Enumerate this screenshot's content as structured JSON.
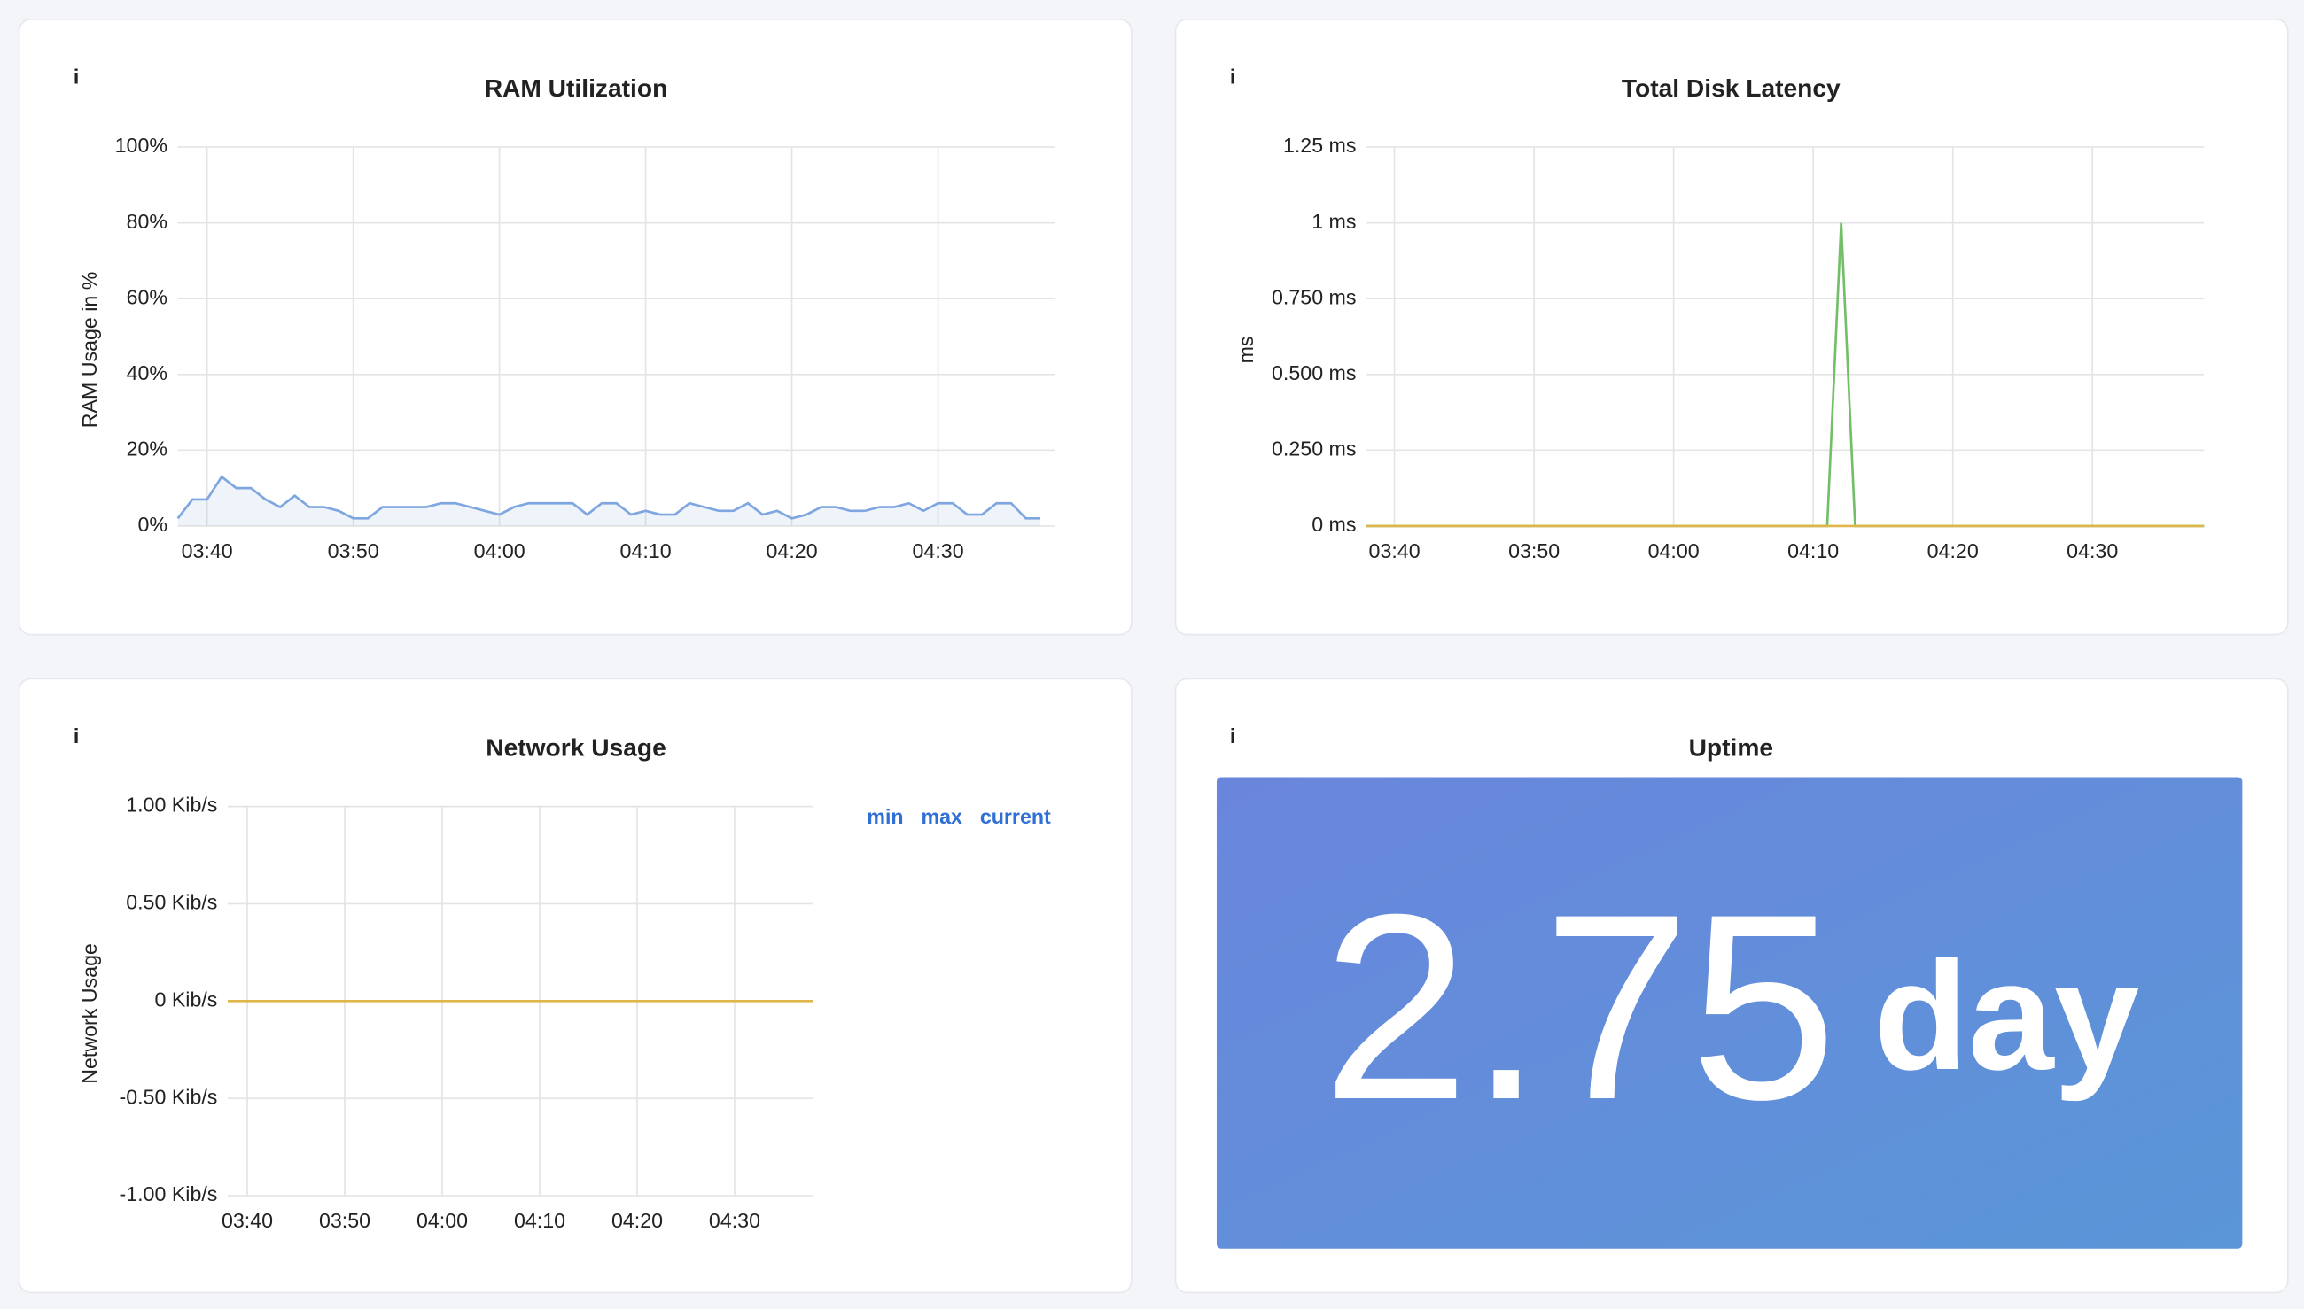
{
  "chart_data": [
    {
      "type": "line",
      "title": "RAM Utilization",
      "ylabel": "RAM Usage in %",
      "grid": true,
      "fill": true,
      "xlim": [
        "03:38",
        "04:38"
      ],
      "xticks": [
        "03:40",
        "03:50",
        "04:00",
        "04:10",
        "04:20",
        "04:30"
      ],
      "ylim": [
        0,
        100
      ],
      "yticks": [
        {
          "value": 0,
          "label": "0%"
        },
        {
          "value": 20,
          "label": "20%"
        },
        {
          "value": 40,
          "label": "40%"
        },
        {
          "value": 60,
          "label": "60%"
        },
        {
          "value": 80,
          "label": "80%"
        },
        {
          "value": 100,
          "label": "100%"
        }
      ],
      "series": [
        {
          "color": "#7ea6e0",
          "x": [
            "03:38",
            "03:39",
            "03:40",
            "03:41",
            "03:42",
            "03:43",
            "03:44",
            "03:45",
            "03:46",
            "03:47",
            "03:48",
            "03:49",
            "03:50",
            "03:51",
            "03:52",
            "03:53",
            "03:54",
            "03:55",
            "03:56",
            "03:57",
            "03:58",
            "03:59",
            "04:00",
            "04:01",
            "04:02",
            "04:03",
            "04:04",
            "04:05",
            "04:06",
            "04:07",
            "04:08",
            "04:09",
            "04:10",
            "04:11",
            "04:12",
            "04:13",
            "04:14",
            "04:15",
            "04:16",
            "04:17",
            "04:18",
            "04:19",
            "04:20",
            "04:21",
            "04:22",
            "04:23",
            "04:24",
            "04:25",
            "04:26",
            "04:27",
            "04:28",
            "04:29",
            "04:30",
            "04:31",
            "04:32",
            "04:33",
            "04:34",
            "04:35",
            "04:36",
            "04:37"
          ],
          "values": [
            2,
            7,
            7,
            13,
            10,
            10,
            7,
            5,
            8,
            5,
            5,
            4,
            2,
            2,
            5,
            5,
            5,
            5,
            6,
            6,
            5,
            4,
            3,
            5,
            6,
            6,
            6,
            6,
            3,
            6,
            6,
            3,
            4,
            3,
            3,
            6,
            5,
            4,
            4,
            6,
            3,
            4,
            2,
            3,
            5,
            5,
            4,
            4,
            5,
            5,
            6,
            4,
            6,
            6,
            3,
            3,
            6,
            6,
            2,
            2
          ]
        }
      ]
    },
    {
      "type": "line",
      "title": "Total Disk Latency",
      "ylabel": "ms",
      "grid": true,
      "xlim": [
        "03:38",
        "04:38"
      ],
      "xticks": [
        "03:40",
        "03:50",
        "04:00",
        "04:10",
        "04:20",
        "04:30"
      ],
      "ylim": [
        0,
        1.25
      ],
      "yticks": [
        {
          "value": 0,
          "label": "0 ms"
        },
        {
          "value": 0.25,
          "label": "0.250 ms"
        },
        {
          "value": 0.5,
          "label": "0.500 ms"
        },
        {
          "value": 0.75,
          "label": "0.750 ms"
        },
        {
          "value": 1,
          "label": "1 ms"
        },
        {
          "value": 1.25,
          "label": "1.25 ms"
        }
      ],
      "series": [
        {
          "color": "#73bf69",
          "x": [
            "03:38",
            "04:11",
            "04:12",
            "04:13",
            "04:38"
          ],
          "values": [
            0,
            0,
            1,
            0,
            0
          ]
        },
        {
          "color": "#e0b64a",
          "x": [
            "03:38",
            "04:38"
          ],
          "values": [
            0,
            0
          ]
        }
      ]
    },
    {
      "type": "line",
      "title": "Network Usage",
      "ylabel": "Network Usage",
      "grid": true,
      "legend_columns": [
        "min",
        "max",
        "current"
      ],
      "xlim": [
        "03:38",
        "04:38"
      ],
      "xticks": [
        "03:40",
        "03:50",
        "04:00",
        "04:10",
        "04:20",
        "04:30"
      ],
      "ylim": [
        -1,
        1
      ],
      "yticks": [
        {
          "value": -1,
          "label": "-1.00 Kib/s"
        },
        {
          "value": -0.5,
          "label": "-0.50 Kib/s"
        },
        {
          "value": 0,
          "label": "0 Kib/s"
        },
        {
          "value": 0.5,
          "label": "0.50 Kib/s"
        },
        {
          "value": 1,
          "label": "1.00 Kib/s"
        }
      ],
      "series": [
        {
          "color": "#e0b64a",
          "x": [
            "03:38",
            "04:38"
          ],
          "values": [
            0,
            0
          ]
        }
      ]
    }
  ],
  "stat": {
    "title": "Uptime",
    "value": 2.75,
    "unit": "day"
  }
}
